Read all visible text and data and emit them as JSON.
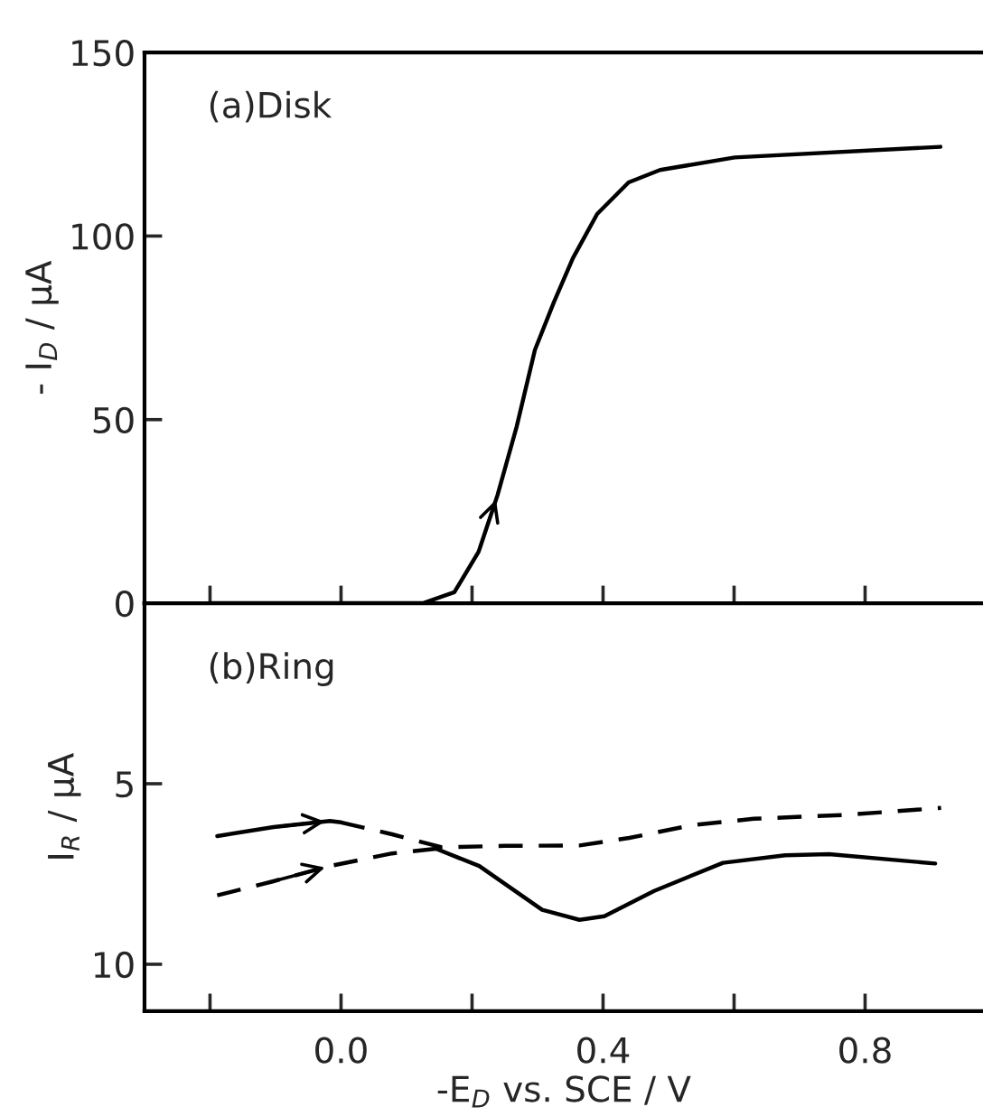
{
  "chart_data": [
    {
      "type": "line",
      "title": "(a)Disk",
      "ylabel": "- I$_{D}$ / μA",
      "tick_labels": "y",
      "xlim": [
        -0.3,
        0.98
      ],
      "ylim": [
        0,
        150
      ],
      "yticks": [
        0,
        50,
        100,
        150
      ],
      "xticks": [
        {
          "value": -0.2,
          "label": null
        },
        {
          "value": 0.0,
          "label": null
        },
        {
          "value": 0.2,
          "label": null
        },
        {
          "value": 0.4,
          "label": null
        },
        {
          "value": 0.6,
          "label": null
        },
        {
          "value": 0.8,
          "label": null
        }
      ],
      "series": [
        {
          "color": "#000000",
          "line_style": "solid",
          "x": [
            -0.2,
            0.125,
            0.173,
            0.21,
            0.239,
            0.268,
            0.296,
            0.325,
            0.354,
            0.391,
            0.439,
            0.487,
            0.601,
            0.915
          ],
          "values": [
            0,
            0,
            3,
            14,
            29.5,
            48,
            69,
            82,
            94,
            106,
            114.6,
            118,
            121.4,
            124.3
          ]
        }
      ]
    },
    {
      "type": "line",
      "title": "(b)Ring",
      "ylabel": "I$_{R}$ / μA",
      "xlabel": "-E$_{D}$ vs. SCE / V",
      "xlim": [
        -0.3,
        0.98
      ],
      "ylim": [
        11.3,
        0
      ],
      "yticks": [
        5,
        10
      ],
      "xticks": [
        {
          "value": -0.2,
          "label": null
        },
        {
          "value": 0.0,
          "label": "0.0"
        },
        {
          "value": 0.2,
          "label": null
        },
        {
          "value": 0.4,
          "label": "0.4"
        },
        {
          "value": 0.6,
          "label": null
        },
        {
          "value": 0.8,
          "label": "0.8"
        }
      ],
      "series": [
        {
          "color": "#000000",
          "line_style": "solid",
          "x": [
            -0.189,
            -0.103,
            -0.017,
            0.0
          ],
          "values": [
            6.45,
            6.2,
            6.03,
            6.07
          ]
        },
        {
          "color": "#000000",
          "line_style": "dashed",
          "x": [
            0.0,
            0.078,
            0.154,
            0.25,
            0.364,
            0.44,
            0.535,
            0.63,
            0.773,
            0.916
          ],
          "values": [
            6.07,
            6.4,
            6.76,
            6.72,
            6.71,
            6.5,
            6.15,
            5.97,
            5.86,
            5.67
          ]
        },
        {
          "color": "#000000",
          "line_style": "dashed",
          "x": [
            -0.189,
            -0.103,
            -0.017,
            0.078,
            0.145
          ],
          "values": [
            8.09,
            7.7,
            7.28,
            6.93,
            6.8
          ]
        },
        {
          "color": "#000000",
          "line_style": "solid",
          "x": [
            0.145,
            0.211,
            0.307,
            0.364,
            0.402,
            0.478,
            0.583,
            0.678,
            0.745,
            0.907
          ],
          "values": [
            6.8,
            7.28,
            8.49,
            8.77,
            8.67,
            7.97,
            7.19,
            6.98,
            6.95,
            7.21
          ]
        }
      ]
    }
  ]
}
